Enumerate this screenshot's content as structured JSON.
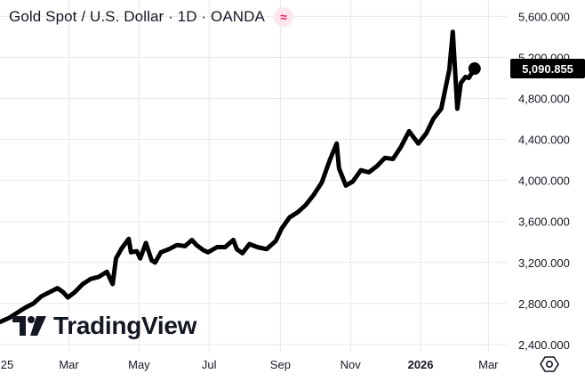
{
  "header": {
    "title": "Gold Spot / U.S. Dollar · 1D · OANDA",
    "badge_icon": "wave-icon"
  },
  "brand": {
    "logo_text": "TradingView"
  },
  "colors": {
    "line": "#000000",
    "grid": "#e6e8ee",
    "price_tag_bg": "#000000",
    "price_tag_text": "#ffffff",
    "badge_bg": "#fde7ec",
    "badge_fg": "#e91e63"
  },
  "chart_data": {
    "type": "line",
    "title": "Gold Spot / U.S. Dollar · 1D · OANDA",
    "xlabel": "",
    "ylabel": "",
    "ylim": [
      2330,
      5760
    ],
    "grid": true,
    "y_ticks": [
      "5,600.000",
      "5,200.000",
      "4,800.000",
      "4,400.000",
      "4,000.000",
      "3,600.000",
      "3,200.000",
      "2,800.000",
      "2,400.000"
    ],
    "y_tick_values": [
      5600,
      5200,
      4800,
      4400,
      4000,
      3600,
      3200,
      2800,
      2400
    ],
    "x_ticks": [
      "25",
      "Mar",
      "May",
      "Jul",
      "Sep",
      "Nov",
      "2026",
      "Mar"
    ],
    "x_tick_dates": [
      "2025-01-01",
      "2025-03-01",
      "2025-05-01",
      "2025-07-01",
      "2025-09-01",
      "2025-11-01",
      "2026-01-01",
      "2026-03-01"
    ],
    "x_range": [
      "2024-12-31",
      "2026-03-17"
    ],
    "last_price_label": "5,090.855",
    "last_price": 5090.855,
    "series": [
      {
        "x": [
          "2024-12-31",
          "2025-01-08",
          "2025-01-15",
          "2025-01-22",
          "2025-01-29",
          "2025-02-05",
          "2025-02-12",
          "2025-02-19",
          "2025-02-24",
          "2025-02-28",
          "2025-03-06",
          "2025-03-13",
          "2025-03-20",
          "2025-03-27",
          "2025-04-03",
          "2025-04-08",
          "2025-04-11",
          "2025-04-16",
          "2025-04-22",
          "2025-04-24",
          "2025-04-29",
          "2025-05-02",
          "2025-05-07",
          "2025-05-12",
          "2025-05-15",
          "2025-05-20",
          "2025-05-27",
          "2025-06-03",
          "2025-06-10",
          "2025-06-16",
          "2025-06-20",
          "2025-06-26",
          "2025-06-30",
          "2025-07-08",
          "2025-07-15",
          "2025-07-22",
          "2025-07-25",
          "2025-07-30",
          "2025-08-05",
          "2025-08-12",
          "2025-08-20",
          "2025-08-28",
          "2025-09-02",
          "2025-09-09",
          "2025-09-16",
          "2025-09-23",
          "2025-09-30",
          "2025-10-07",
          "2025-10-14",
          "2025-10-20",
          "2025-10-22",
          "2025-10-28",
          "2025-11-03",
          "2025-11-10",
          "2025-11-17",
          "2025-11-24",
          "2025-12-01",
          "2025-12-08",
          "2025-12-15",
          "2025-12-22",
          "2025-12-30",
          "2026-01-06",
          "2026-01-12",
          "2026-01-19",
          "2026-01-26",
          "2026-01-29",
          "2026-02-02",
          "2026-02-05",
          "2026-02-09",
          "2026-02-12",
          "2026-02-17"
        ],
        "values": [
          2620,
          2660,
          2710,
          2760,
          2800,
          2870,
          2910,
          2950,
          2910,
          2860,
          2910,
          2990,
          3040,
          3060,
          3110,
          2990,
          3240,
          3340,
          3430,
          3300,
          3310,
          3240,
          3390,
          3220,
          3200,
          3300,
          3330,
          3370,
          3360,
          3420,
          3370,
          3320,
          3300,
          3350,
          3350,
          3420,
          3330,
          3290,
          3380,
          3350,
          3330,
          3410,
          3530,
          3640,
          3690,
          3760,
          3860,
          3980,
          4200,
          4360,
          4120,
          3950,
          3990,
          4100,
          4080,
          4140,
          4220,
          4210,
          4330,
          4480,
          4360,
          4460,
          4600,
          4700,
          5080,
          5450,
          4700,
          4950,
          5010,
          5000,
          5090.855
        ]
      }
    ]
  }
}
